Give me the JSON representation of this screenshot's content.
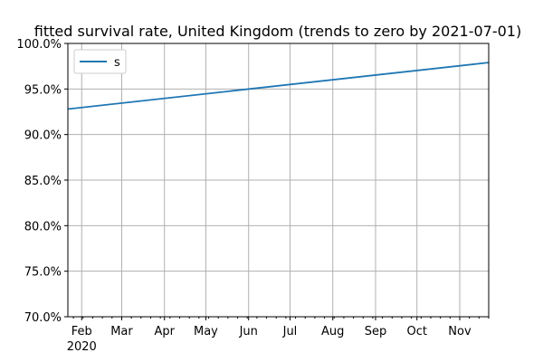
{
  "chart_data": {
    "type": "line",
    "title": "fitted survival rate, United Kingdom (trends to zero by 2021-07-01)",
    "xlabel": "",
    "ylabel": "",
    "x": [
      "2020-01-22",
      "2020-11-22"
    ],
    "series": [
      {
        "name": "s",
        "color": "#1f77b4",
        "values": [
          92.8,
          97.9
        ]
      }
    ],
    "xlim": [
      "2020-01-22",
      "2020-11-22"
    ],
    "ylim": [
      70,
      100
    ],
    "yticks": [
      70,
      75,
      80,
      85,
      90,
      95,
      100
    ],
    "ytick_labels": [
      "70.0%",
      "75.0%",
      "80.0%",
      "85.0%",
      "90.0%",
      "95.0%",
      "100.0%"
    ],
    "xticks": [
      "2020-02-01",
      "2020-03-01",
      "2020-04-01",
      "2020-05-01",
      "2020-06-01",
      "2020-07-01",
      "2020-08-01",
      "2020-09-01",
      "2020-10-01",
      "2020-11-01"
    ],
    "xtick_labels": [
      "Feb",
      "Mar",
      "Apr",
      "May",
      "Jun",
      "Jul",
      "Aug",
      "Sep",
      "Oct",
      "Nov"
    ],
    "xtick_year_label": "2020",
    "grid": true,
    "legend": "upper-left"
  }
}
